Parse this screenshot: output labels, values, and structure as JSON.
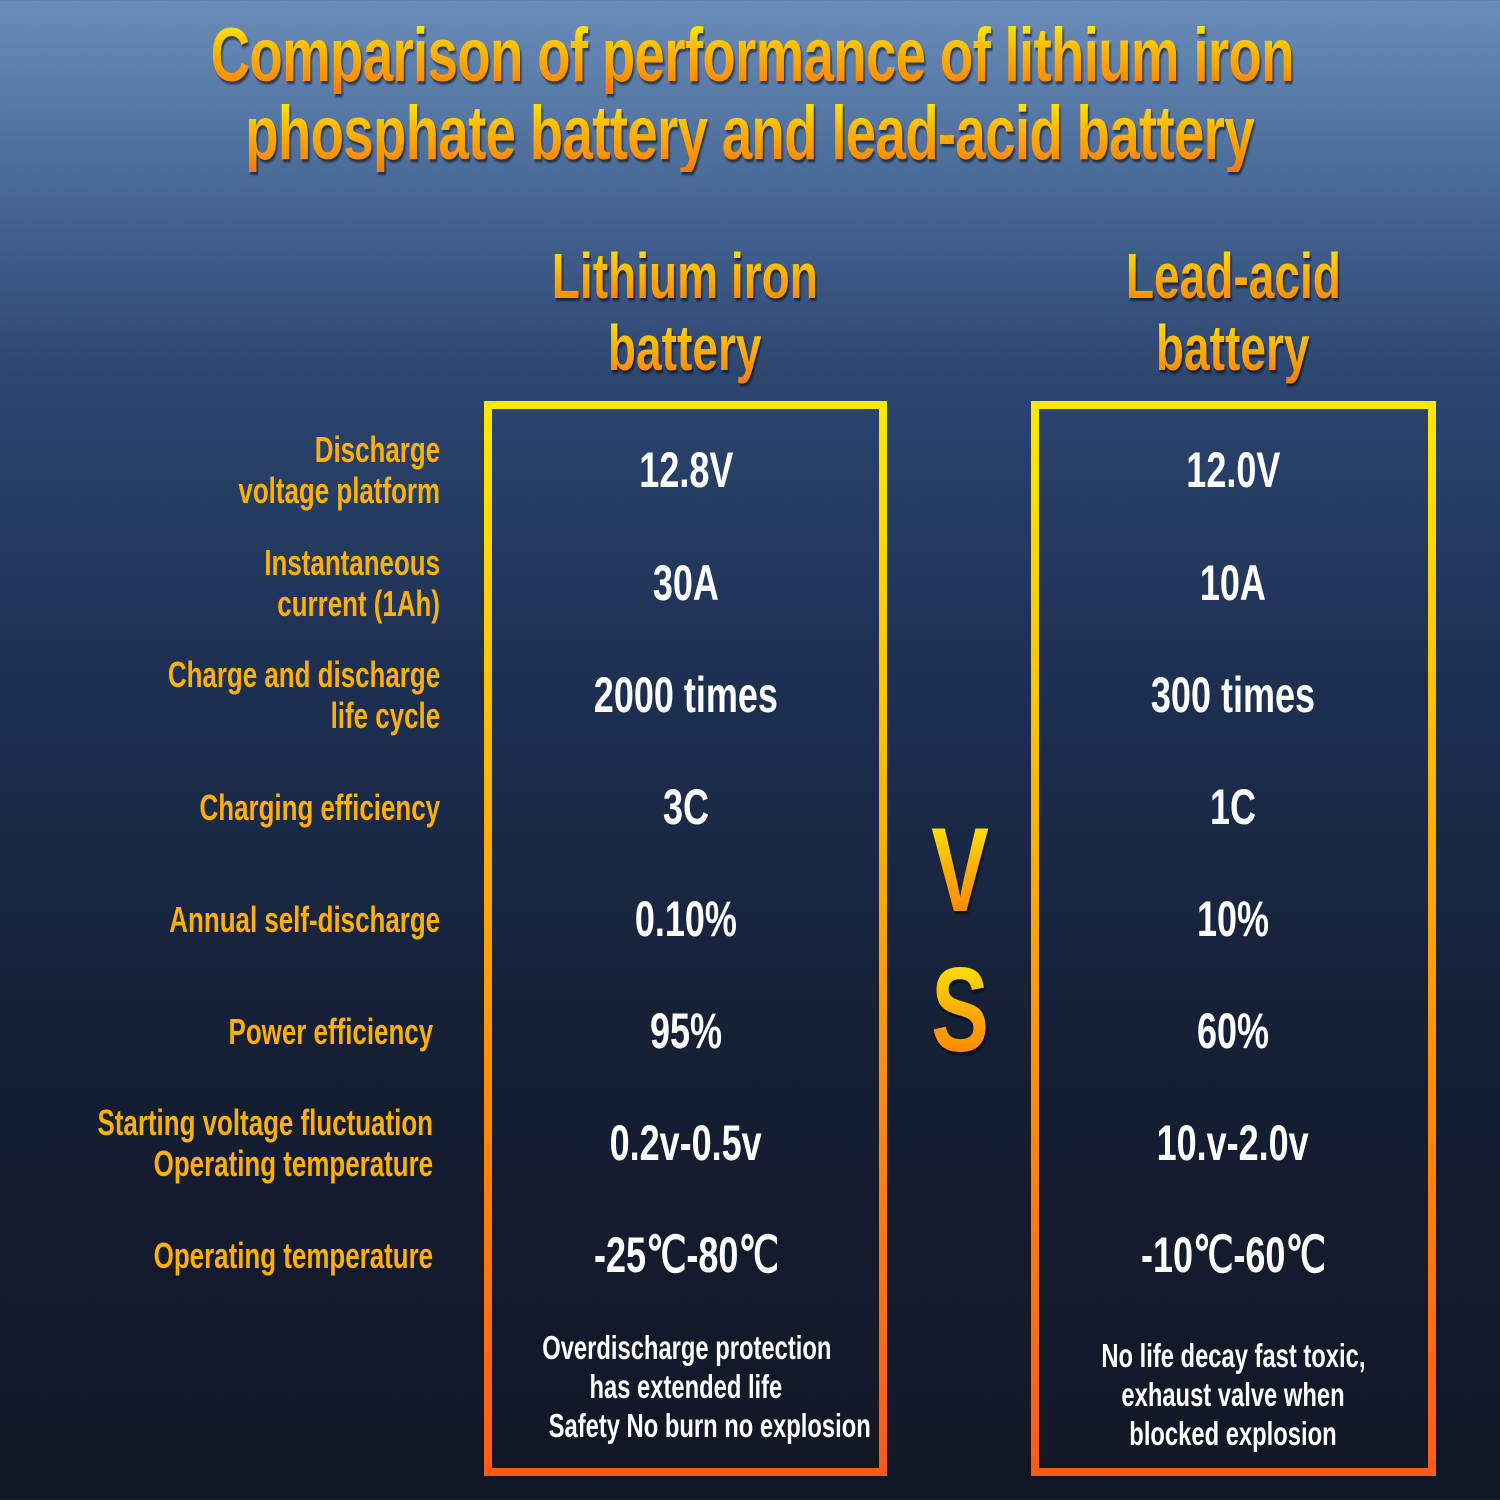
{
  "title": {
    "line1": "Comparison of performance of lithium iron",
    "line2": "phosphate battery and lead-acid battery"
  },
  "columns": [
    {
      "line1": "Lithium iron",
      "line2": "battery"
    },
    {
      "line1": "Lead-acid",
      "line2": "battery"
    }
  ],
  "vs": {
    "v": "V",
    "s": "S"
  },
  "rows": [
    {
      "label": [
        "Discharge",
        "voltage platform"
      ],
      "lithium": "12.8V",
      "lead": "12.0V"
    },
    {
      "label": [
        "Instantaneous",
        "current (1Ah)"
      ],
      "lithium": "30A",
      "lead": "10A"
    },
    {
      "label": [
        "Charge and discharge",
        "life cycle"
      ],
      "lithium": "2000 times",
      "lead": "300 times"
    },
    {
      "label": [
        "Charging efficiency"
      ],
      "lithium": "3C",
      "lead": "1C"
    },
    {
      "label": [
        "Annual self-discharge"
      ],
      "lithium": "0.10%",
      "lead": "10%"
    },
    {
      "label": [
        "Power efficiency"
      ],
      "lithium": "95%",
      "lead": "60%"
    },
    {
      "label": [
        "Starting voltage fluctuation",
        "Operating temperature"
      ],
      "lithium": "0.2v-0.5v",
      "lead": "10.v-2.0v"
    },
    {
      "label": [
        "Operating temperature"
      ],
      "lithium": "-25℃-80℃",
      "lead": "-10℃-60℃"
    }
  ],
  "notes": {
    "lithium": [
      "Overdischarge protection",
      "has extended life",
      "Safety No burn no explosion"
    ],
    "lead": [
      "No life decay fast toxic,",
      "exhaust valve when",
      "blocked explosion"
    ]
  },
  "colors": {
    "accent_yellow": "#ffe800",
    "accent_orange": "#ff5a14",
    "label": "#ffb000",
    "value": "#ffffff"
  }
}
